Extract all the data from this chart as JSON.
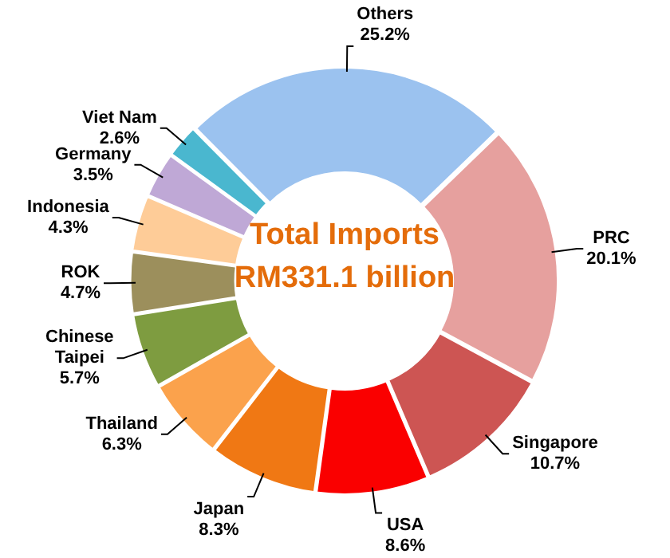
{
  "chart_data": {
    "type": "donut",
    "title": "Total Imports RM331.1 billion",
    "categories": [
      "PRC",
      "Singapore",
      "USA",
      "Japan",
      "Thailand",
      "Chinese Taipei",
      "ROK",
      "Indonesia",
      "Germany",
      "Viet Nam",
      "Others"
    ],
    "values": [
      20.1,
      10.7,
      8.6,
      8.3,
      6.3,
      5.7,
      4.7,
      4.3,
      3.5,
      2.6,
      25.2
    ],
    "value_labels": [
      "20.1%",
      "10.7%",
      "8.6%",
      "8.3%",
      "6.3%",
      "5.7%",
      "4.7%",
      "4.3%",
      "3.5%",
      "2.6%",
      "25.2%"
    ],
    "colors": [
      "#e6a09e",
      "#cd5553",
      "#fa0000",
      "#f07814",
      "#fba24c",
      "#7e9c40",
      "#9c8f5c",
      "#fecc98",
      "#bfa8d6",
      "#4ab7cf",
      "#9bc2ef"
    ],
    "legend": false
  }
}
